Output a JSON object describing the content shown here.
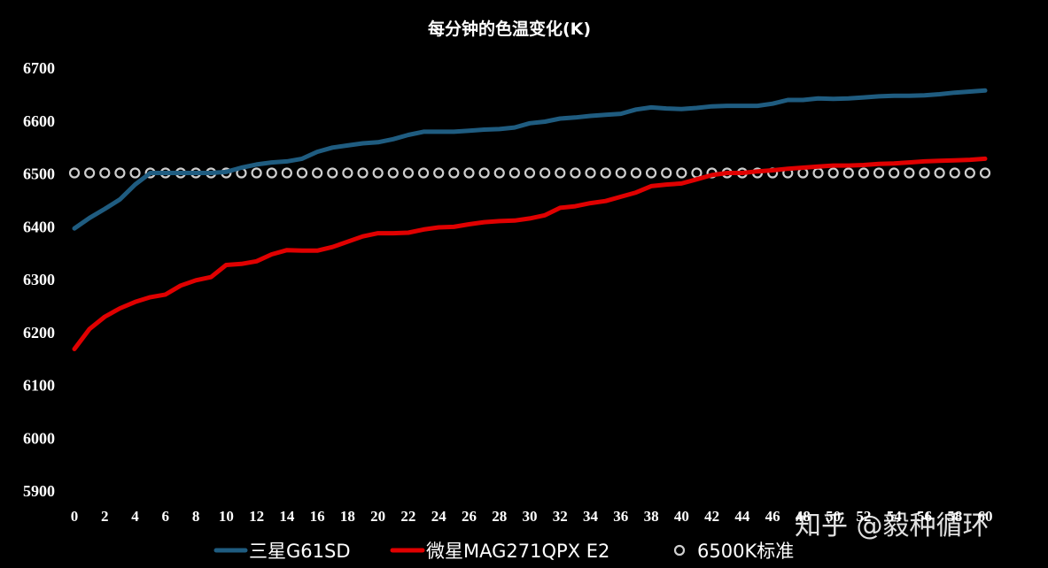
{
  "watermark": "知乎 @毅种循环",
  "chart_data": {
    "type": "line",
    "title": "每分钟的色温变化(K)",
    "xlabel": "",
    "ylabel": "",
    "xlim": [
      0,
      60
    ],
    "ylim": [
      5900,
      6700
    ],
    "yticks": [
      5900,
      6000,
      6100,
      6200,
      6300,
      6400,
      6500,
      6600,
      6700
    ],
    "xticks": [
      0,
      2,
      4,
      6,
      8,
      10,
      12,
      14,
      16,
      18,
      20,
      22,
      24,
      26,
      28,
      30,
      32,
      34,
      36,
      38,
      40,
      42,
      44,
      46,
      48,
      50,
      52,
      54,
      56,
      58,
      60
    ],
    "grid": true,
    "legend_position": "bottom",
    "x": [
      0,
      1,
      2,
      3,
      4,
      5,
      6,
      7,
      8,
      9,
      10,
      11,
      12,
      13,
      14,
      15,
      16,
      17,
      18,
      19,
      20,
      21,
      22,
      23,
      24,
      25,
      26,
      27,
      28,
      29,
      30,
      31,
      32,
      33,
      34,
      35,
      36,
      37,
      38,
      39,
      40,
      41,
      42,
      43,
      44,
      45,
      46,
      47,
      48,
      49,
      50,
      51,
      52,
      53,
      54,
      55,
      56,
      57,
      58,
      59,
      60
    ],
    "series": [
      {
        "name": "三星G61SD",
        "color": "#1f5c80",
        "style": "line",
        "values": [
          6395,
          6415,
          6432,
          6450,
          6478,
          6500,
          6500,
          6500,
          6500,
          6500,
          6502,
          6510,
          6516,
          6520,
          6522,
          6527,
          6540,
          6548,
          6552,
          6556,
          6558,
          6564,
          6572,
          6578,
          6578,
          6578,
          6580,
          6582,
          6583,
          6586,
          6594,
          6597,
          6603,
          6605,
          6608,
          6610,
          6612,
          6620,
          6624,
          6622,
          6621,
          6623,
          6626,
          6627,
          6627,
          6627,
          6631,
          6638,
          6638,
          6641,
          6640,
          6641,
          6643,
          6645,
          6646,
          6646,
          6647,
          6649,
          6652,
          6654,
          6656
        ]
      },
      {
        "name": "微星MAG271QPX E2",
        "color": "#e00000",
        "style": "line",
        "values": [
          6167,
          6205,
          6228,
          6244,
          6256,
          6265,
          6270,
          6287,
          6297,
          6303,
          6326,
          6328,
          6333,
          6346,
          6354,
          6353,
          6353,
          6360,
          6370,
          6380,
          6386,
          6386,
          6387,
          6393,
          6397,
          6398,
          6403,
          6407,
          6409,
          6410,
          6414,
          6420,
          6434,
          6437,
          6443,
          6447,
          6455,
          6463,
          6475,
          6478,
          6480,
          6488,
          6496,
          6500,
          6500,
          6503,
          6505,
          6508,
          6510,
          6512,
          6514,
          6514,
          6515,
          6517,
          6518,
          6520,
          6522,
          6523,
          6524,
          6525,
          6527
        ]
      },
      {
        "name": "6500K标准",
        "color": "#cfcfcf",
        "style": "marker",
        "values": [
          6500,
          6500,
          6500,
          6500,
          6500,
          6500,
          6500,
          6500,
          6500,
          6500,
          6500,
          6500,
          6500,
          6500,
          6500,
          6500,
          6500,
          6500,
          6500,
          6500,
          6500,
          6500,
          6500,
          6500,
          6500,
          6500,
          6500,
          6500,
          6500,
          6500,
          6500,
          6500,
          6500,
          6500,
          6500,
          6500,
          6500,
          6500,
          6500,
          6500,
          6500,
          6500,
          6500,
          6500,
          6500,
          6500,
          6500,
          6500,
          6500,
          6500,
          6500,
          6500,
          6500,
          6500,
          6500,
          6500,
          6500,
          6500,
          6500,
          6500,
          6500
        ]
      }
    ]
  }
}
